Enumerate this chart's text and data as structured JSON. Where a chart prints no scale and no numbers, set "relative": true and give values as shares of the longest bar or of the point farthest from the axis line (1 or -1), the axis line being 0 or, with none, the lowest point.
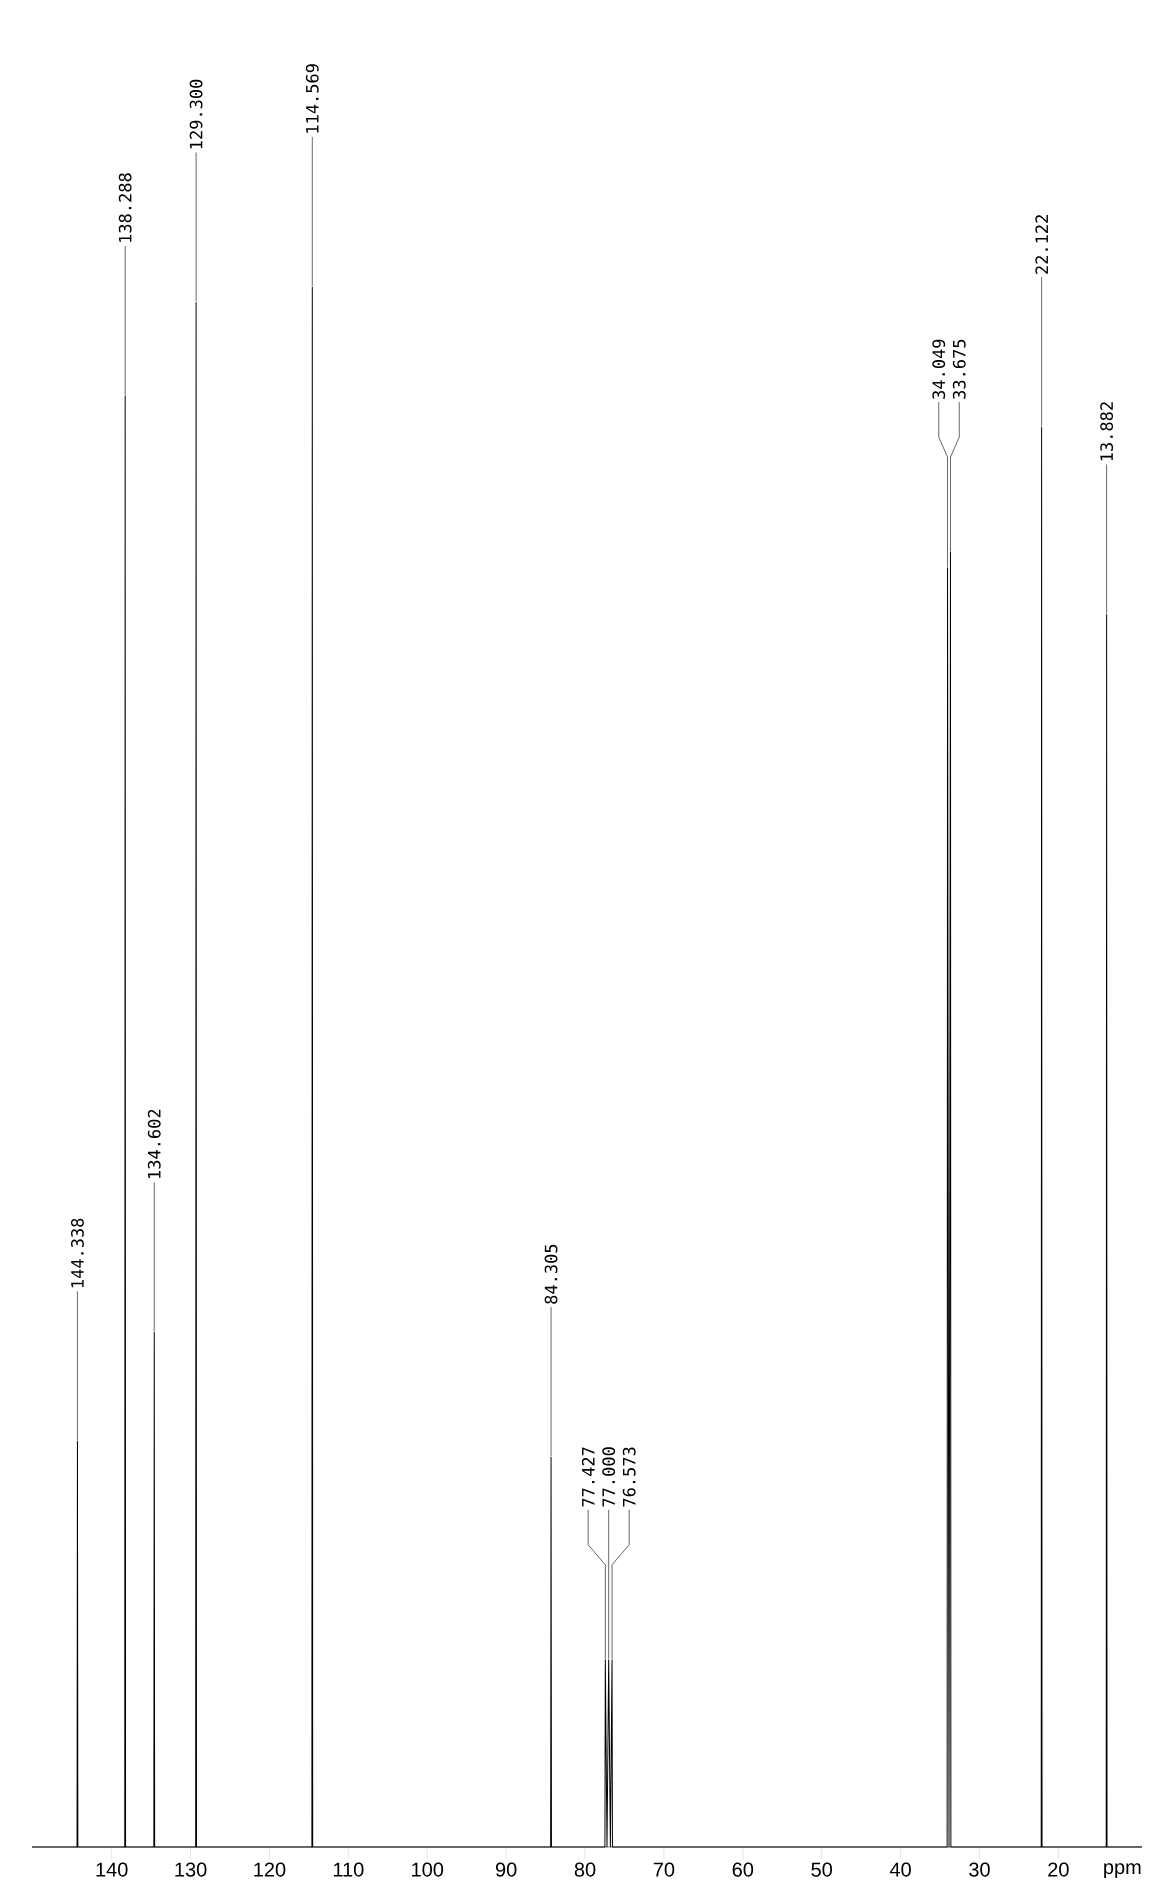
{
  "chart_data": {
    "type": "line",
    "relative": true,
    "xlabel": "ppm",
    "color": "#000000",
    "x": [
      9.4,
      13.832,
      13.882,
      13.932,
      22.072,
      22.122,
      22.172,
      33.625,
      33.675,
      33.862,
      34.049,
      34.099,
      76.523,
      76.573,
      76.786,
      77.0,
      77.213,
      77.427,
      77.477,
      84.255,
      84.305,
      84.355,
      114.519,
      114.569,
      114.619,
      129.25,
      129.3,
      129.35,
      134.552,
      134.602,
      134.652,
      138.238,
      138.288,
      138.338,
      144.288,
      144.338,
      144.388,
      150.1
    ],
    "values": [
      0,
      0,
      0.79,
      0,
      0,
      0.91,
      0,
      0,
      0.83,
      0,
      0.82,
      0,
      0,
      0.12,
      0,
      0.12,
      0,
      0.12,
      0,
      0,
      0.25,
      0,
      0,
      1.0,
      0,
      0,
      0.99,
      0,
      0,
      0.33,
      0,
      0,
      0.93,
      0,
      0,
      0.26,
      0,
      0
    ],
    "xlim": [
      150.1,
      9.4
    ],
    "xticks": [
      20,
      30,
      40,
      50,
      60,
      70,
      80,
      90,
      100,
      110,
      120,
      130,
      140
    ],
    "annotations": [
      {
        "text": "13.882",
        "x": 13.882,
        "y": 0.79
      },
      {
        "text": "22.122",
        "x": 22.122,
        "y": 0.91
      },
      {
        "text": "33.675",
        "x": 33.675,
        "y": 0.83
      },
      {
        "text": "34.049",
        "x": 34.049,
        "y": 0.82
      },
      {
        "text": "76.573",
        "x": 76.573,
        "y": 0.12
      },
      {
        "text": "77.000",
        "x": 77.0,
        "y": 0.12
      },
      {
        "text": "77.427",
        "x": 77.427,
        "y": 0.12
      },
      {
        "text": "84.305",
        "x": 84.305,
        "y": 0.25
      },
      {
        "text": "114.569",
        "x": 114.569,
        "y": 1.0
      },
      {
        "text": "129.300",
        "x": 129.3,
        "y": 0.99
      },
      {
        "text": "134.602",
        "x": 134.602,
        "y": 0.33
      },
      {
        "text": "138.288",
        "x": 138.288,
        "y": 0.93
      },
      {
        "text": "144.338",
        "x": 144.338,
        "y": 0.26
      }
    ]
  }
}
